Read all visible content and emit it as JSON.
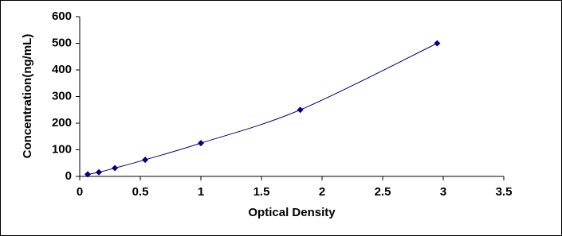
{
  "chart_data": {
    "type": "line",
    "x_label": "Optical Density",
    "y_label": "Concentration(ng/mL)",
    "x": [
      0.066,
      0.158,
      0.29,
      0.54,
      1.0,
      1.82,
      2.95
    ],
    "series": [
      {
        "color": "#000080",
        "values": [
          7.8,
          15.6,
          31.25,
          62.5,
          125,
          250,
          500
        ]
      }
    ],
    "xlim": [
      0,
      3.5
    ],
    "xticks": [
      0,
      0.5,
      1,
      1.5,
      2,
      2.5,
      3,
      3.5
    ],
    "ylim": [
      0,
      600
    ],
    "yticks": [
      0,
      100,
      200,
      300,
      400,
      500,
      600
    ],
    "smooth": true,
    "markers": "diamond"
  }
}
